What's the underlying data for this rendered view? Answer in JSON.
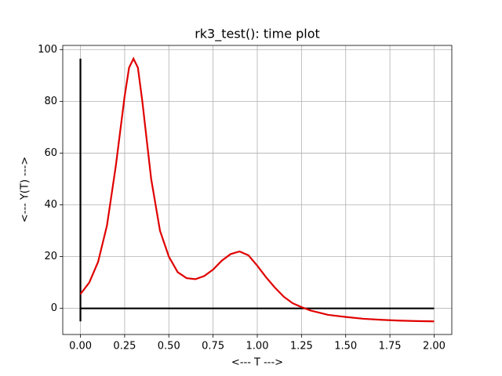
{
  "chart_data": {
    "type": "line",
    "title": "rk3_test(): time plot",
    "xlabel": "<--- T --->",
    "ylabel": "<--- Y(T) --->",
    "xlim": [
      -0.1,
      2.1
    ],
    "ylim": [
      -10.08,
      101.6
    ],
    "xticks": [
      {
        "value": 0,
        "label": "0.00"
      },
      {
        "value": 0.25,
        "label": "0.25"
      },
      {
        "value": 0.5,
        "label": "0.50"
      },
      {
        "value": 0.75,
        "label": "0.75"
      },
      {
        "value": 1,
        "label": "1.00"
      },
      {
        "value": 1.25,
        "label": "1.25"
      },
      {
        "value": 1.5,
        "label": "1.50"
      },
      {
        "value": 1.75,
        "label": "1.75"
      },
      {
        "value": 2,
        "label": "2.00"
      }
    ],
    "yticks": [
      0,
      20,
      40,
      60,
      80,
      100
    ],
    "grid": true,
    "series": [
      {
        "color": "#000000",
        "x": [
          0,
          0
        ],
        "values": [
          -5,
          96.5
        ]
      },
      {
        "color": "#000000",
        "x": [
          0,
          2
        ],
        "values": [
          0,
          0
        ]
      },
      {
        "color": "#e00000",
        "x": [
          0,
          0.05,
          0.1,
          0.15,
          0.2,
          0.25,
          0.275,
          0.3,
          0.325,
          0.35,
          0.4,
          0.45,
          0.5,
          0.55,
          0.6,
          0.65,
          0.7,
          0.75,
          0.8,
          0.85,
          0.9,
          0.95,
          1.0,
          1.05,
          1.1,
          1.15,
          1.2,
          1.25,
          1.3,
          1.4,
          1.5,
          1.6,
          1.7,
          1.8,
          1.9,
          2.0
        ],
        "values": [
          5.5,
          10,
          18,
          32,
          55,
          82,
          93,
          96.5,
          93,
          80,
          50,
          30,
          20,
          14,
          11.7,
          11.3,
          12.5,
          15,
          18.5,
          21,
          22,
          20.5,
          16.5,
          12,
          8,
          4.5,
          2,
          0.5,
          -0.8,
          -2.5,
          -3.3,
          -4,
          -4.4,
          -4.7,
          -4.9,
          -5
        ]
      }
    ]
  }
}
